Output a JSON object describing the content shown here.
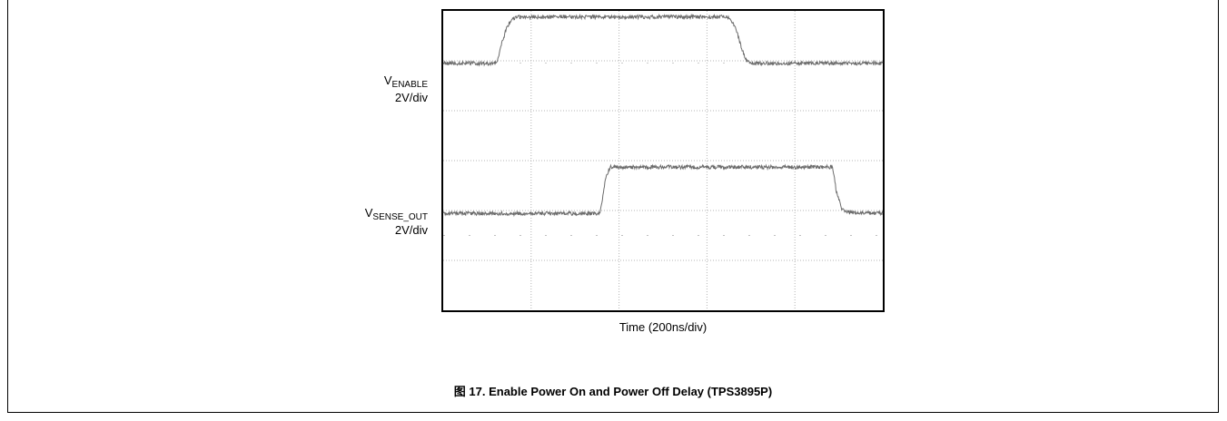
{
  "figure": {
    "caption": "图 17. Enable Power On and Power Off Delay (TPS3895P)"
  },
  "chart_data": {
    "type": "line",
    "xlabel": "Time (200ns/div)",
    "x_divisions": 5,
    "y_divisions": 6,
    "grid": true,
    "series": [
      {
        "name": "VENABLE",
        "label_main": "V",
        "label_sub": "ENABLE",
        "scale": "2V/div",
        "color": "#6b6b6b",
        "baseline_div": 1.05,
        "points": [
          [
            0,
            0
          ],
          [
            0.6,
            0
          ],
          [
            0.62,
            0.1
          ],
          [
            0.67,
            0.45
          ],
          [
            0.72,
            0.75
          ],
          [
            0.77,
            0.93
          ],
          [
            0.85,
            1.0
          ],
          [
            3.25,
            1.0
          ],
          [
            3.32,
            0.8
          ],
          [
            3.39,
            0.35
          ],
          [
            3.45,
            0.05
          ],
          [
            3.5,
            0
          ],
          [
            5,
            0
          ]
        ]
      },
      {
        "name": "VSENSE_OUT",
        "label_main": "V",
        "label_sub": "SENSE_OUT",
        "scale": "2V/div",
        "color": "#6b6b6b",
        "baseline_div": 4.06,
        "points": [
          [
            0,
            0
          ],
          [
            1.78,
            0
          ],
          [
            1.8,
            0.2
          ],
          [
            1.85,
            0.8
          ],
          [
            1.9,
            1.0
          ],
          [
            4.43,
            1.0
          ],
          [
            4.47,
            0.5
          ],
          [
            4.53,
            0.1
          ],
          [
            4.62,
            0.02
          ],
          [
            5,
            0
          ]
        ]
      }
    ]
  }
}
